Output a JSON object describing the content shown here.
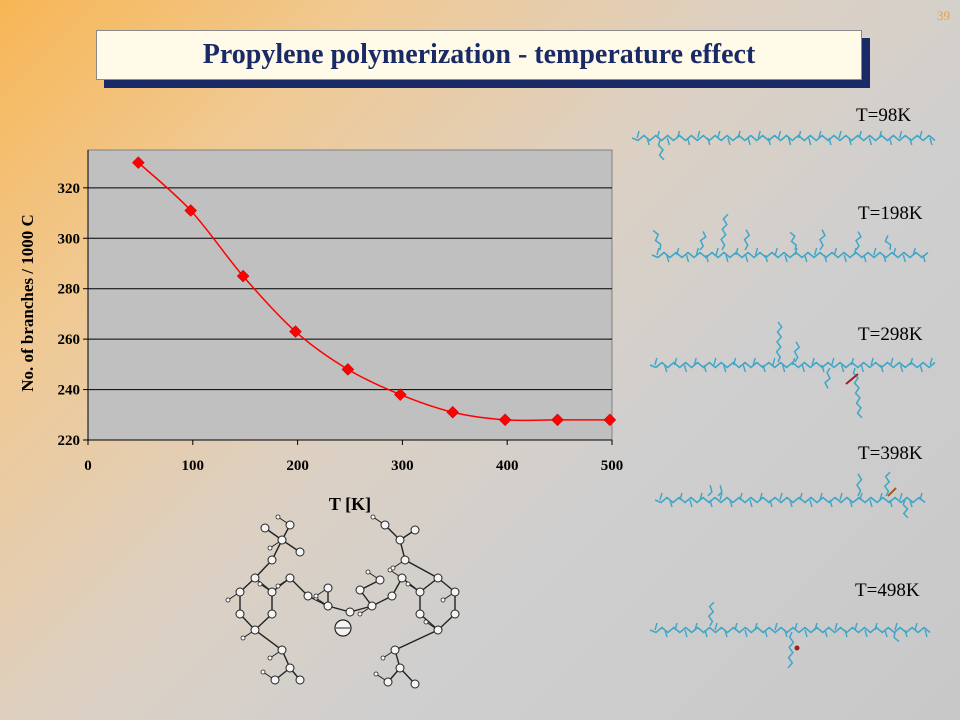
{
  "slide_number": "39",
  "title": "Propylene polymerization - temperature effect",
  "temperature_labels": [
    "T=98K",
    "T=198K",
    "T=298K",
    "T=398K",
    "T=498K"
  ],
  "colors": {
    "series": "#ff0000",
    "plot_background": "#c0c0c0",
    "title_text": "#1a2a66",
    "chain": "#3fa6c8"
  },
  "chart_data": {
    "type": "line",
    "xlabel": "T [K]",
    "ylabel": "No. of branches / 1000 C",
    "xlim": [
      0,
      500
    ],
    "ylim": [
      220,
      335
    ],
    "xticks": [
      0,
      100,
      200,
      300,
      400,
      500
    ],
    "yticks": [
      220,
      240,
      260,
      280,
      300,
      320
    ],
    "grid": "horizontal",
    "series": [
      {
        "x": [
          48,
          98,
          148,
          198,
          248,
          298,
          348,
          398,
          448,
          498
        ],
        "values": [
          330,
          311,
          285,
          263,
          248,
          238,
          231,
          228,
          228,
          228
        ]
      }
    ]
  }
}
